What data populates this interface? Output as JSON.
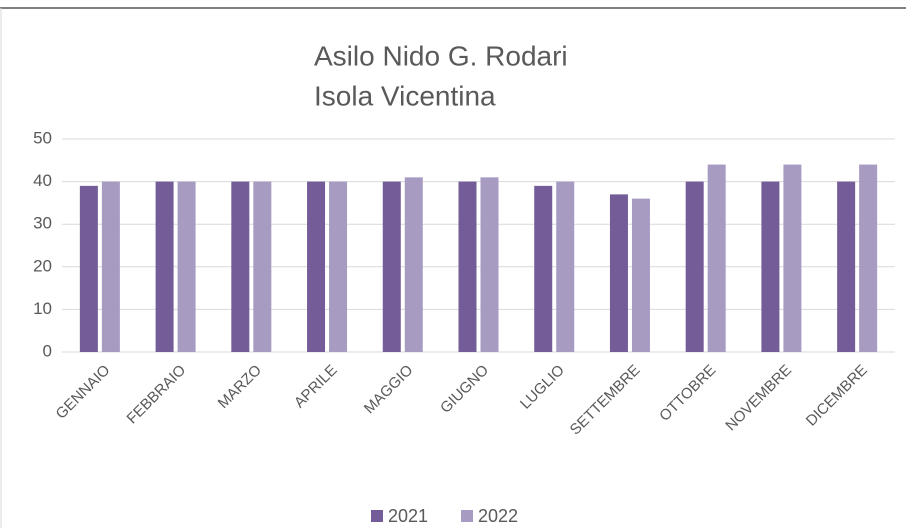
{
  "chart_data": {
    "type": "bar",
    "title": "Asilo Nido G. Rodari",
    "subtitle": "Isola Vicentina",
    "categories": [
      "GENNAIO",
      "FEBBRAIO",
      "MARZO",
      "APRILE",
      "MAGGIO",
      "GIUGNO",
      "LUGLIO",
      "SETTEMBRE",
      "OTTOBRE",
      "NOVEMBRE",
      "DICEMBRE"
    ],
    "series": [
      {
        "name": "2021",
        "color": "#735c97",
        "values": [
          39,
          40,
          40,
          40,
          40,
          40,
          39,
          37,
          40,
          40,
          40
        ]
      },
      {
        "name": "2022",
        "color": "#a79bc2",
        "values": [
          40,
          40,
          40,
          40,
          41,
          41,
          40,
          36,
          44,
          44,
          44
        ]
      }
    ],
    "ylim": [
      0,
      50
    ],
    "yticks": [
      0,
      10,
      20,
      30,
      40,
      50
    ],
    "grid": true,
    "legend": "bottom"
  }
}
